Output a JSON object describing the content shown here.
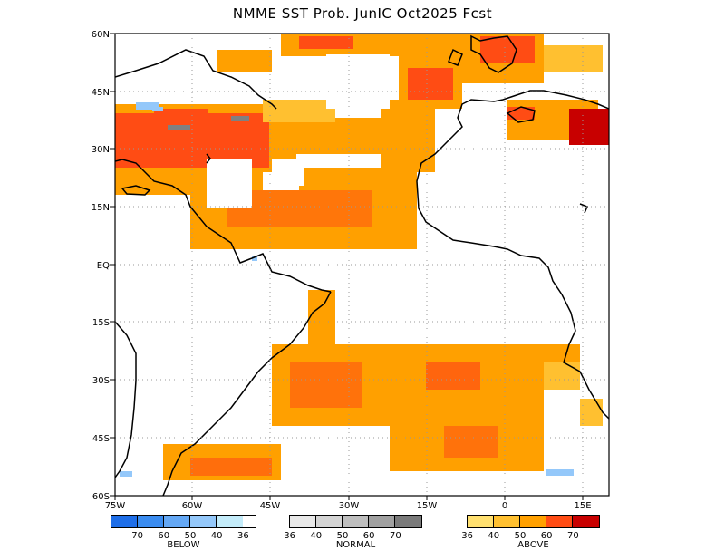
{
  "title": "NMME SST Prob. JunIC  Oct2025 Fcst",
  "map": {
    "lat_labels": [
      "60N",
      "45N",
      "30N",
      "15N",
      "EQ",
      "15S",
      "30S",
      "45S",
      "60S"
    ],
    "lon_labels": [
      "75W",
      "60W",
      "45W",
      "30W",
      "15W",
      "0",
      "15E"
    ],
    "extent": {
      "lon": [
        -75,
        20
      ],
      "lat": [
        -60,
        60
      ]
    }
  },
  "legend": {
    "below": {
      "caption": "BELOW",
      "ticks": [
        "70",
        "60",
        "50",
        "40",
        "36"
      ],
      "colors": [
        "#1e6ee8",
        "#3a8cf0",
        "#64a8f5",
        "#94c8fa",
        "#c4ecfa"
      ]
    },
    "normal": {
      "caption": "NORMAL",
      "ticks": [
        "36",
        "40",
        "50",
        "60",
        "70"
      ],
      "colors": [
        "#e8e8e8",
        "#d4d4d4",
        "#bebebe",
        "#a0a0a0",
        "#7a7a7a"
      ]
    },
    "above": {
      "caption": "ABOVE",
      "ticks": [
        "36",
        "40",
        "50",
        "60",
        "70"
      ],
      "colors": [
        "#ffe070",
        "#ffc030",
        "#ffa000",
        "#ff4c14",
        "#c80000"
      ]
    }
  }
}
